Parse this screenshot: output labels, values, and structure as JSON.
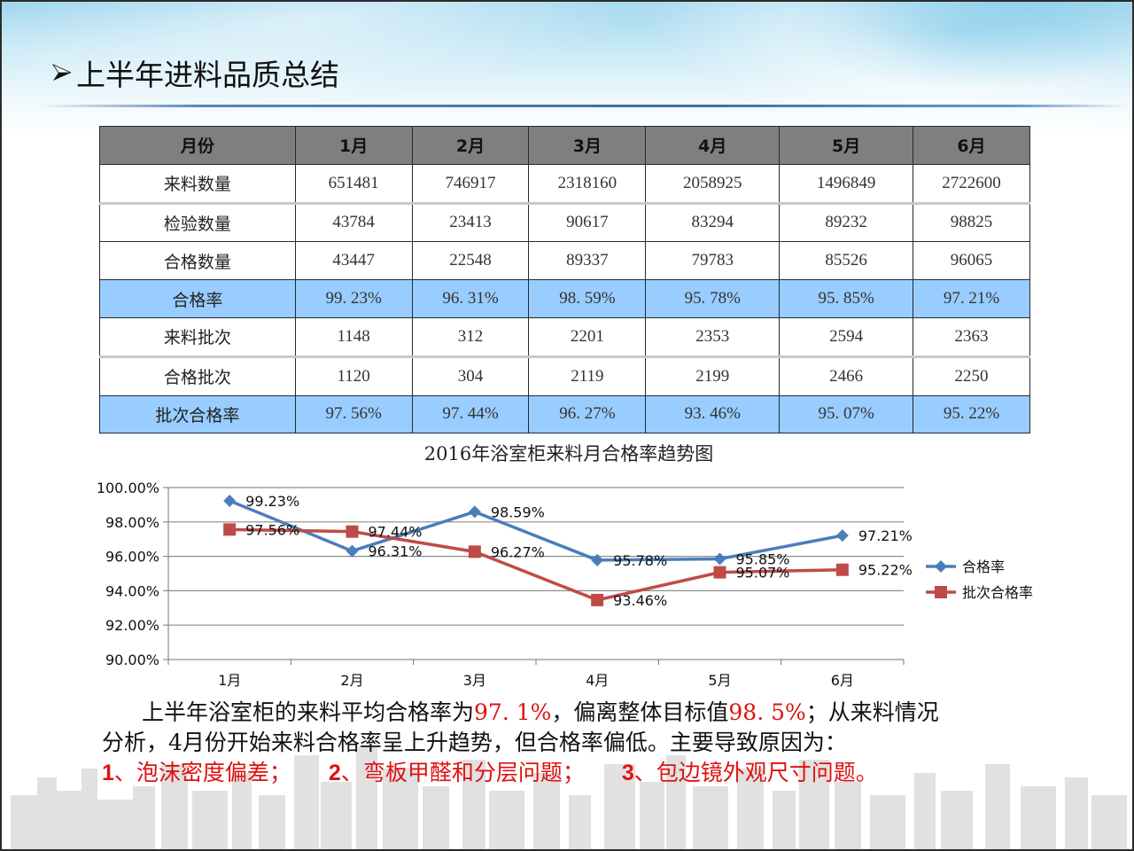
{
  "slide": {
    "title": "上半年进料品质总结",
    "title_bullet_icon": "arrow-bullet-icon"
  },
  "table": {
    "header": [
      "月份",
      "1月",
      "2月",
      "3月",
      "4月",
      "5月",
      "6月"
    ],
    "rows": [
      {
        "label": "来料数量",
        "values": [
          "651481",
          "746917",
          "2318160",
          "2058925",
          "1496849",
          "2722600"
        ],
        "highlight": false
      },
      {
        "label": "检验数量",
        "values": [
          "43784",
          "23413",
          "90617",
          "83294",
          "89232",
          "98825"
        ],
        "highlight": false
      },
      {
        "label": "合格数量",
        "values": [
          "43447",
          "22548",
          "89337",
          "79783",
          "85526",
          "96065"
        ],
        "highlight": false
      },
      {
        "label": "合格率",
        "values": [
          "99. 23%",
          "96. 31%",
          "98. 59%",
          "95. 78%",
          "95. 85%",
          "97. 21%"
        ],
        "highlight": true
      },
      {
        "label": "来料批次",
        "values": [
          "1148",
          "312",
          "2201",
          "2353",
          "2594",
          "2363"
        ],
        "highlight": false
      },
      {
        "label": "合格批次",
        "values": [
          "1120",
          "304",
          "2119",
          "2199",
          "2466",
          "2250"
        ],
        "highlight": false
      },
      {
        "label": "批次合格率",
        "values": [
          "97. 56%",
          "97. 44%",
          "96. 27%",
          "93. 46%",
          "95. 07%",
          "95. 22%"
        ],
        "highlight": true
      }
    ],
    "colors": {
      "header_bg": "#7f7f7f",
      "highlight_bg": "#99ccff",
      "border": "#1f2a3a"
    }
  },
  "chart_data": {
    "type": "line",
    "title": "2016年浴室柜来料月合格率趋势图",
    "categories": [
      "1月",
      "2月",
      "3月",
      "4月",
      "5月",
      "6月"
    ],
    "series": [
      {
        "name": "合格率",
        "values": [
          99.23,
          96.31,
          98.59,
          95.78,
          95.85,
          97.21
        ],
        "labels": [
          "99.23%",
          "96.31%",
          "98.59%",
          "95.78%",
          "95.85%",
          "97.21%"
        ],
        "color": "#4a7ebb",
        "marker": "diamond"
      },
      {
        "name": "批次合格率",
        "values": [
          97.56,
          97.44,
          96.27,
          93.46,
          95.07,
          95.22
        ],
        "labels": [
          "97.56%",
          "97.44%",
          "96.27%",
          "93.46%",
          "95.07%",
          "95.22%"
        ],
        "color": "#be4b48",
        "marker": "square"
      }
    ],
    "yticks": [
      "100.00%",
      "98.00%",
      "96.00%",
      "94.00%",
      "92.00%",
      "90.00%"
    ],
    "ylim": [
      90,
      100
    ],
    "xlabel": "",
    "ylabel": "",
    "grid": true,
    "legend_position": "right"
  },
  "summary": {
    "line1_a": "上半年浴室柜的来料平均合格率为",
    "avg_rate": "97. 1%",
    "line1_b": "，偏离整体目标值",
    "target_rate": "98. 5%",
    "line1_c": "；从来料情况",
    "line2": "分析，4月份开始来料合格率呈上升趋势，但合格率偏低。主要导致原因为：",
    "reasons": [
      {
        "num": "1",
        "text": "、泡沫密度偏差；"
      },
      {
        "num": "2",
        "text": "、弯板甲醛和分层问题；"
      },
      {
        "num": "3",
        "text": "、包边镜外观尺寸问题。"
      }
    ],
    "colors": {
      "highlight": "#e01010",
      "body": "#111111"
    }
  }
}
